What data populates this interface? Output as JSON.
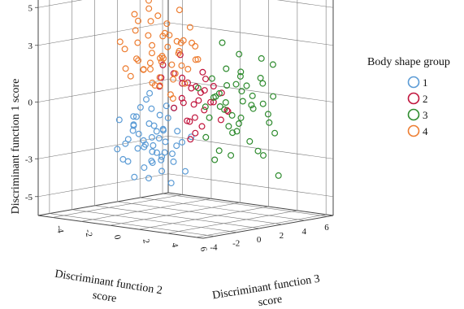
{
  "chart_data": {
    "type": "scatter",
    "projection": "3d",
    "z_axis": {
      "label": "Discriminant function 1 score",
      "ticks": [
        "5",
        "3",
        "0",
        "-3",
        "-5"
      ],
      "range": [
        -6,
        6
      ]
    },
    "x_axis": {
      "label_line1": "Discriminant function 2",
      "label_line2": "score",
      "ticks": [
        "-4",
        "-2",
        "0",
        "2",
        "4",
        "6"
      ],
      "range": [
        -5,
        6.5
      ]
    },
    "y_axis": {
      "label_line1": "Discriminant function 3",
      "label_line2": "score",
      "ticks": [
        "-4",
        "-2",
        "0",
        "2",
        "4",
        "6"
      ],
      "range": [
        -5,
        6.5
      ]
    },
    "grid": true,
    "legend": {
      "title": "Body shape group",
      "position": "right",
      "items": [
        {
          "label": "1",
          "color": "#5b9bd5"
        },
        {
          "label": "2",
          "color": "#c0143c"
        },
        {
          "label": "3",
          "color": "#2e8b2e"
        },
        {
          "label": "4",
          "color": "#ed7d31"
        }
      ]
    },
    "series": [
      {
        "name": "1",
        "color": "#5b9bd5",
        "points": [
          [
            -1.6,
            0,
            -2.2
          ],
          [
            -1.1,
            0.3,
            -1.4
          ],
          [
            -0.7,
            -0.4,
            -1.9
          ],
          [
            -0.2,
            0.1,
            -2.7
          ],
          [
            0.4,
            -0.6,
            -2.0
          ],
          [
            -1.3,
            0.8,
            -2.9
          ],
          [
            -0.5,
            -0.9,
            -1.1
          ],
          [
            0.1,
            0.5,
            -3.2
          ],
          [
            -2.1,
            -0.3,
            -1.7
          ],
          [
            -0.9,
            -1.4,
            -2.4
          ],
          [
            0.6,
            0.2,
            -1.5
          ],
          [
            -1.8,
            1.1,
            -2.6
          ],
          [
            -0.3,
            -0.2,
            -0.7
          ],
          [
            -2.4,
            0.6,
            -2.0
          ],
          [
            -1.0,
            -0.7,
            -3.5
          ],
          [
            0.8,
            -0.5,
            -2.6
          ],
          [
            -0.6,
            0.9,
            -1.0
          ],
          [
            -1.5,
            -1.0,
            -1.3
          ],
          [
            -2.8,
            -0.8,
            -2.7
          ],
          [
            -0.1,
            -1.2,
            -3.0
          ],
          [
            -1.2,
            0.2,
            -0.5
          ],
          [
            0.3,
            1.0,
            -2.2
          ],
          [
            -2.0,
            -1.3,
            -3.1
          ],
          [
            -0.8,
            0.6,
            -3.8
          ],
          [
            -3.0,
            0.9,
            -1.6
          ],
          [
            -1.7,
            -0.5,
            -0.9
          ],
          [
            0.2,
            -0.9,
            -1.8
          ],
          [
            -0.4,
            1.4,
            -2.5
          ],
          [
            -2.6,
            -0.1,
            -3.4
          ],
          [
            -1.4,
            1.5,
            -1.8
          ],
          [
            -0.2,
            -1.6,
            -2.1
          ],
          [
            -3.5,
            1.6,
            -4.5
          ],
          [
            -1.9,
            2.0,
            -3.3
          ],
          [
            0.0,
            0.0,
            -0.2
          ],
          [
            -2.2,
            1.3,
            0.1
          ],
          [
            -1.0,
            -0.3,
            -4.1
          ],
          [
            -0.6,
            -0.1,
            -1.6
          ],
          [
            -1.3,
            0.4,
            -2.8
          ],
          [
            -2.5,
            -1.0,
            -1.1
          ],
          [
            0.5,
            -1.1,
            -2.9
          ],
          [
            1.0,
            0.4,
            -3.6
          ],
          [
            -0.9,
            1.8,
            -0.6
          ],
          [
            -1.6,
            -1.6,
            -2.2
          ],
          [
            -2.9,
            0.3,
            -2.3
          ],
          [
            -0.3,
            0.8,
            -4.4
          ],
          [
            -1.1,
            -0.9,
            -0.3
          ],
          [
            0.7,
            1.3,
            -1.9
          ],
          [
            -2.3,
            0.0,
            -1.0
          ],
          [
            -0.5,
            -0.6,
            -3.2
          ],
          [
            -1.8,
            0.5,
            -0.1
          ],
          [
            0.0,
            -0.3,
            -1.4
          ],
          [
            -1.4,
            -0.2,
            -2.5
          ]
        ]
      },
      {
        "name": "2",
        "color": "#c0143c",
        "points": [
          [
            0.6,
            0.6,
            0.2
          ],
          [
            1.2,
            1.0,
            -0.8
          ],
          [
            0.3,
            1.5,
            0.9
          ],
          [
            1.6,
            0.4,
            0.0
          ],
          [
            0.9,
            2.0,
            -1.4
          ],
          [
            -0.2,
            0.9,
            1.4
          ],
          [
            1.4,
            1.6,
            0.6
          ],
          [
            2.0,
            0.8,
            -0.3
          ],
          [
            0.5,
            2.4,
            0.3
          ],
          [
            -0.5,
            1.3,
            -0.5
          ],
          [
            1.1,
            0.0,
            1.1
          ],
          [
            2.3,
            1.9,
            -0.9
          ],
          [
            0.8,
            1.1,
            -2.0
          ],
          [
            1.8,
            2.6,
            0.4
          ],
          [
            -0.8,
            0.4,
            0.7
          ],
          [
            1.5,
            1.3,
            1.6
          ],
          [
            0.2,
            1.8,
            -1.2
          ],
          [
            2.6,
            0.6,
            0.2
          ],
          [
            1.0,
            2.9,
            -0.2
          ],
          [
            -0.4,
            0.2,
            1.9
          ],
          [
            1.3,
            0.9,
            -1.6
          ],
          [
            0.7,
            0.5,
            1.3
          ],
          [
            2.1,
            1.5,
            0.9
          ],
          [
            0.0,
            2.2,
            0.5
          ],
          [
            1.7,
            3.2,
            -0.6
          ],
          [
            -1.0,
            0.8,
            1.1
          ],
          [
            0.4,
            1.0,
            -0.1
          ],
          [
            1.9,
            0.2,
            1.0
          ],
          [
            0.9,
            1.7,
            0.0
          ],
          [
            2.4,
            2.4,
            -0.5
          ],
          [
            -0.3,
            1.6,
            2.3
          ],
          [
            1.2,
            0.3,
            -0.9
          ],
          [
            0.6,
            2.7,
            1.0
          ]
        ]
      },
      {
        "name": "3",
        "color": "#2e8b2e",
        "points": [
          [
            2.5,
            1.0,
            0.4
          ],
          [
            3.0,
            2.0,
            -0.6
          ],
          [
            2.0,
            2.8,
            0.8
          ],
          [
            3.5,
            1.4,
            -1.4
          ],
          [
            2.8,
            3.2,
            0.0
          ],
          [
            1.6,
            2.0,
            1.2
          ],
          [
            4.0,
            2.6,
            -0.2
          ],
          [
            3.2,
            0.6,
            -2.3
          ],
          [
            2.2,
            3.8,
            -1.0
          ],
          [
            4.5,
            1.9,
            0.6
          ],
          [
            1.8,
            1.2,
            -1.8
          ],
          [
            3.8,
            3.5,
            1.3
          ],
          [
            2.6,
            2.4,
            -2.8
          ],
          [
            4.8,
            3.0,
            -0.9
          ],
          [
            1.4,
            2.9,
            0.3
          ],
          [
            3.4,
            4.2,
            0.9
          ],
          [
            2.9,
            1.6,
            1.9
          ],
          [
            4.2,
            0.9,
            -1.2
          ],
          [
            2.3,
            4.6,
            -0.4
          ],
          [
            5.0,
            2.2,
            0.2
          ],
          [
            1.9,
            0.4,
            0.9
          ],
          [
            3.6,
            2.8,
            -2.0
          ],
          [
            2.7,
            3.0,
            2.5
          ],
          [
            4.4,
            4.0,
            -1.6
          ],
          [
            3.1,
            1.2,
            -0.2
          ],
          [
            1.5,
            3.6,
            -1.5
          ],
          [
            3.9,
            1.6,
            1.6
          ],
          [
            2.4,
            2.2,
            0.0
          ],
          [
            4.6,
            3.6,
            0.4
          ],
          [
            3.3,
            4.8,
            -0.8
          ],
          [
            2.1,
            1.6,
            -3.0
          ],
          [
            5.2,
            1.5,
            -2.2
          ],
          [
            3.7,
            2.4,
            1.0
          ],
          [
            2.8,
            0.8,
            0.5
          ],
          [
            1.7,
            4.0,
            0.7
          ],
          [
            4.1,
            3.2,
            2.4
          ],
          [
            3.0,
            2.6,
            -1.1
          ],
          [
            2.5,
            3.4,
            1.5
          ],
          [
            4.7,
            2.6,
            -2.6
          ],
          [
            3.5,
            0.3,
            0.1
          ],
          [
            2.2,
            1.0,
            -0.7
          ],
          [
            6.0,
            2.3,
            -3.5
          ],
          [
            3.8,
            4.6,
            1.9
          ],
          [
            2.0,
            2.4,
            3.1
          ],
          [
            4.3,
            1.2,
            0.9
          ],
          [
            1.3,
            1.8,
            -0.3
          ]
        ]
      },
      {
        "name": "4",
        "color": "#ed7d31",
        "points": [
          [
            -0.8,
            -0.6,
            3.5
          ],
          [
            -0.3,
            0.0,
            2.4
          ],
          [
            0.4,
            -0.4,
            3.0
          ],
          [
            -1.4,
            0.5,
            2.8
          ],
          [
            -0.6,
            0.8,
            4.0
          ],
          [
            0.9,
            0.2,
            2.0
          ],
          [
            -2.0,
            -0.2,
            3.6
          ],
          [
            0.1,
            1.0,
            2.6
          ],
          [
            -1.1,
            -1.1,
            2.2
          ],
          [
            0.6,
            -0.9,
            3.8
          ],
          [
            -1.8,
            1.0,
            2.3
          ],
          [
            -0.2,
            -0.5,
            4.6
          ],
          [
            1.3,
            0.6,
            3.2
          ],
          [
            -2.4,
            0.4,
            2.0
          ],
          [
            -0.9,
            1.4,
            3.3
          ],
          [
            0.3,
            0.4,
            1.5
          ],
          [
            -1.5,
            -0.6,
            4.2
          ],
          [
            1.0,
            -0.2,
            2.7
          ],
          [
            -0.5,
            -1.4,
            1.8
          ],
          [
            -2.6,
            -0.8,
            3.0
          ],
          [
            0.7,
            1.2,
            3.9
          ],
          [
            -1.2,
            0.1,
            1.6
          ],
          [
            -0.1,
            -0.2,
            3.5
          ],
          [
            1.5,
            0.0,
            1.9
          ],
          [
            -2.2,
            1.4,
            3.9
          ],
          [
            -0.7,
            0.3,
            1.2
          ],
          [
            0.5,
            -1.2,
            2.5
          ],
          [
            -1.6,
            1.6,
            1.8
          ],
          [
            0.2,
            0.9,
            4.8
          ],
          [
            -2.9,
            0.0,
            2.5
          ],
          [
            1.1,
            -0.8,
            1.4
          ],
          [
            -0.4,
            1.8,
            2.9
          ],
          [
            -1.9,
            -1.2,
            1.7
          ],
          [
            0.8,
            0.6,
            1.0
          ],
          [
            -1.0,
            -0.3,
            5.3
          ],
          [
            1.8,
            0.3,
            2.4
          ],
          [
            -2.3,
            0.9,
            1.4
          ],
          [
            -0.2,
            -1.0,
            1.1
          ],
          [
            0.0,
            1.5,
            3.1
          ],
          [
            -1.3,
            -0.9,
            3.1
          ],
          [
            1.4,
            1.0,
            2.3
          ],
          [
            -0.8,
            0.0,
            0.8
          ],
          [
            -1.7,
            0.6,
            4.7
          ],
          [
            0.6,
            -0.4,
            0.5
          ],
          [
            -2.1,
            -0.5,
            1.2
          ],
          [
            0.9,
            1.4,
            2.9
          ],
          [
            -1.4,
            1.2,
            0.6
          ],
          [
            -0.5,
            -0.8,
            2.1
          ],
          [
            0.3,
            0.2,
            0.2
          ],
          [
            1.2,
            -0.6,
            3.4
          ],
          [
            -2.7,
            0.6,
            4.3
          ],
          [
            -0.1,
            0.6,
            1.9
          ],
          [
            -1.0,
            1.0,
            2.1
          ]
        ]
      }
    ]
  }
}
